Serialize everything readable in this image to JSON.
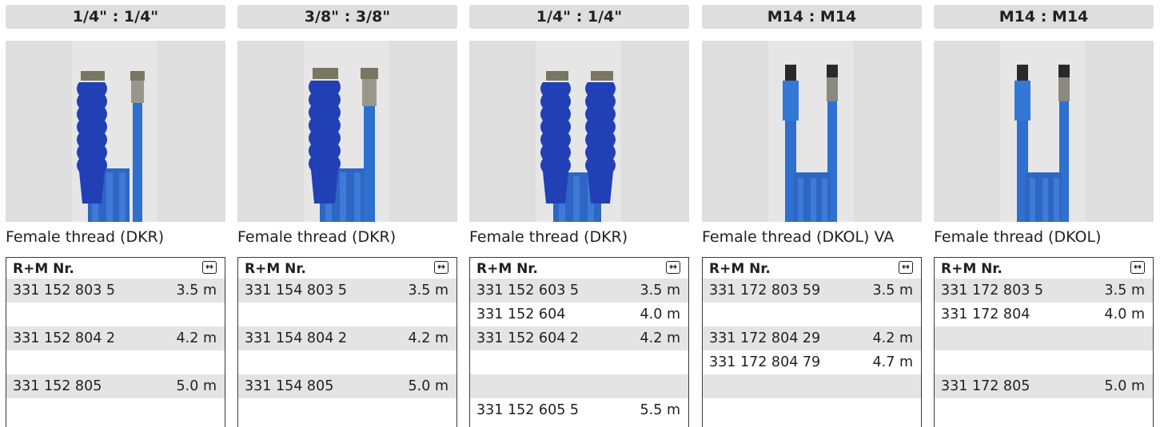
{
  "columns": [
    {
      "header": "1/4\" : 1/4\"",
      "caption": "Female thread (DKR)",
      "table_header": "R+M Nr.",
      "rows": [
        {
          "nr": "331 152 803 5",
          "len": "3.5 m"
        },
        {
          "nr": "",
          "len": ""
        },
        {
          "nr": "331 152 804 2",
          "len": "4.2 m"
        },
        {
          "nr": "",
          "len": ""
        },
        {
          "nr": "331 152 805",
          "len": "5.0 m"
        },
        {
          "nr": "",
          "len": ""
        }
      ]
    },
    {
      "header": "3/8\" : 3/8\"",
      "caption": "Female thread (DKR)",
      "table_header": "R+M Nr.",
      "rows": [
        {
          "nr": "331 154 803 5",
          "len": "3.5 m"
        },
        {
          "nr": "",
          "len": ""
        },
        {
          "nr": "331 154 804 2",
          "len": "4.2 m"
        },
        {
          "nr": "",
          "len": ""
        },
        {
          "nr": "331 154 805",
          "len": "5.0 m"
        },
        {
          "nr": "",
          "len": ""
        }
      ]
    },
    {
      "header": "1/4\" : 1/4\"",
      "caption": "Female thread (DKR)",
      "table_header": "R+M Nr.",
      "rows": [
        {
          "nr": "331 152 603 5",
          "len": "3.5 m"
        },
        {
          "nr": "331 152 604",
          "len": "4.0 m"
        },
        {
          "nr": "331 152 604 2",
          "len": "4.2 m"
        },
        {
          "nr": "",
          "len": ""
        },
        {
          "nr": "",
          "len": ""
        },
        {
          "nr": "331 152 605 5",
          "len": "5.5 m"
        }
      ]
    },
    {
      "header": "M14 : M14",
      "caption": "Female thread (DKOL) VA",
      "table_header": "R+M Nr.",
      "rows": [
        {
          "nr": "331 172 803 59",
          "len": "3.5 m"
        },
        {
          "nr": "",
          "len": ""
        },
        {
          "nr": "331 172 804 29",
          "len": "4.2 m"
        },
        {
          "nr": "331 172 804 79",
          "len": "4.7 m"
        },
        {
          "nr": "",
          "len": ""
        },
        {
          "nr": "",
          "len": ""
        }
      ]
    },
    {
      "header": "M14 : M14",
      "caption": "Female thread (DKOL)",
      "table_header": "R+M Nr.",
      "rows": [
        {
          "nr": "331 172 803 5",
          "len": "3.5 m"
        },
        {
          "nr": "331 172 804",
          "len": "4.0 m"
        },
        {
          "nr": "",
          "len": ""
        },
        {
          "nr": "",
          "len": ""
        },
        {
          "nr": "331 172 805",
          "len": "5.0 m"
        },
        {
          "nr": "",
          "len": ""
        }
      ]
    }
  ],
  "colors": {
    "header_bg": "#dedede",
    "row_shade": "#e4e4e4",
    "hose_blue": "#2e6fcf",
    "grip_blue": "#2244b8"
  },
  "icons": {
    "length": "length-icon"
  }
}
